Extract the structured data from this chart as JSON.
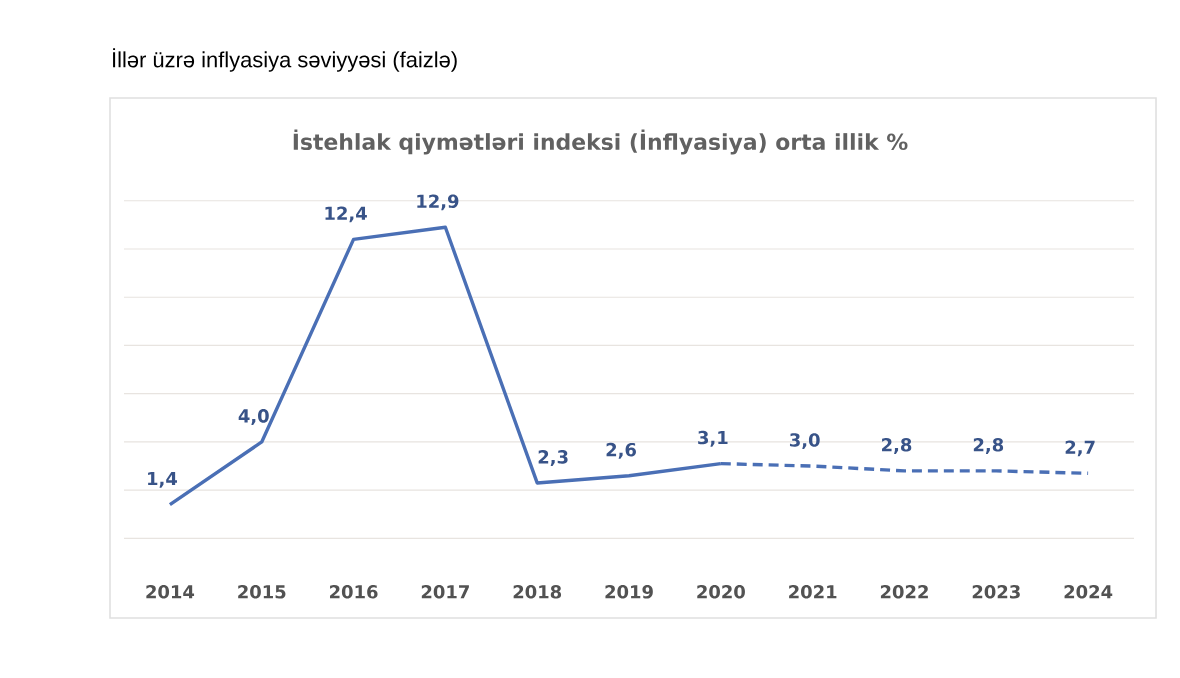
{
  "chart_data": {
    "type": "line",
    "title": "İllər üzrə inflyasiya səviyyəsi (faizlə)",
    "subtitle": "İstehlak qiymətləri indeksi (İnflyasiya) orta illik %",
    "categories": [
      "2014",
      "2015",
      "2016",
      "2017",
      "2018",
      "2019",
      "2020",
      "2021",
      "2022",
      "2023",
      "2024"
    ],
    "series": [
      {
        "color": "#4a6fb5",
        "line_style": "solid",
        "values": [
          1.4,
          4.0,
          12.4,
          12.9,
          2.3,
          2.6,
          3.1,
          null,
          null,
          null,
          null
        ],
        "value_labels": [
          "1,4",
          "4,0",
          "12,4",
          "12,9",
          "2,3",
          "2,6",
          "3,1",
          null,
          null,
          null,
          null
        ]
      },
      {
        "color": "#4a6fb5",
        "line_style": "dashed",
        "values": [
          null,
          null,
          null,
          null,
          null,
          null,
          3.1,
          3.0,
          2.8,
          2.8,
          2.7
        ],
        "value_labels": [
          null,
          null,
          null,
          null,
          null,
          null,
          null,
          "3,0",
          "2,8",
          "2,8",
          "2,7"
        ]
      }
    ],
    "grid": "y",
    "tick_labels": "x",
    "marker": "none"
  }
}
